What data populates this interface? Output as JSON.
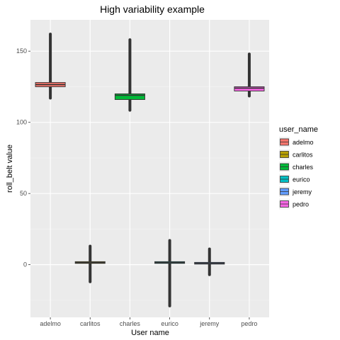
{
  "chart_data": {
    "type": "box",
    "title": "High variability example",
    "xlabel": "User name",
    "ylabel": "roll_belt value",
    "ylim": [
      -37,
      172
    ],
    "yticks": [
      0,
      50,
      100,
      150
    ],
    "grid": true,
    "legend": {
      "title": "user_name",
      "placement": "right"
    },
    "categories": [
      "adelmo",
      "carlitos",
      "charles",
      "eurico",
      "jeremy",
      "pedro"
    ],
    "colors": [
      "#F8766D",
      "#B79F00",
      "#00BA38",
      "#00BFC4",
      "#619CFF",
      "#F564E3"
    ],
    "boxes": [
      {
        "name": "adelmo",
        "min": 117,
        "q1": 125,
        "median": 126.5,
        "q3": 128,
        "max": 162,
        "whisker_low": 120,
        "whisker_high": 131
      },
      {
        "name": "carlitos",
        "min": -12,
        "q1": 1.2,
        "median": 1.5,
        "q3": 1.8,
        "max": 13,
        "whisker_low": 0.7,
        "whisker_high": 2.3
      },
      {
        "name": "charles",
        "min": 108.5,
        "q1": 116,
        "median": 119,
        "q3": 120,
        "max": 158,
        "whisker_low": 112,
        "whisker_high": 123
      },
      {
        "name": "eurico",
        "min": -29,
        "q1": 1,
        "median": 1.5,
        "q3": 2,
        "max": 17,
        "whisker_low": 0,
        "whisker_high": 3
      },
      {
        "name": "jeremy",
        "min": -7,
        "q1": 0.5,
        "median": 1,
        "q3": 1.5,
        "max": 11,
        "whisker_low": -0.5,
        "whisker_high": 2.5
      },
      {
        "name": "pedro",
        "min": 118.5,
        "q1": 122,
        "median": 124,
        "q3": 125,
        "max": 148,
        "whisker_low": 120,
        "whisker_high": 129
      }
    ]
  }
}
